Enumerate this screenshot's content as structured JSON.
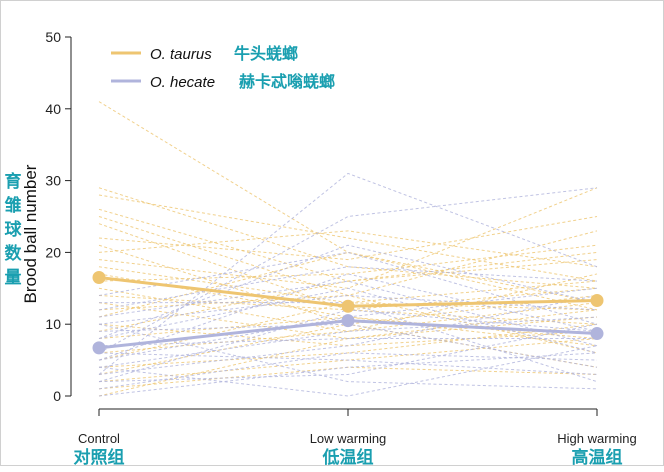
{
  "chart_data": {
    "type": "line",
    "ylabel": "Brood ball number",
    "ylabel_cn": [
      "育",
      "雏",
      "球",
      "数",
      "量"
    ],
    "ylim": [
      0,
      50
    ],
    "yticks": [
      0,
      10,
      20,
      30,
      40,
      50
    ],
    "categories": [
      "Control",
      "Low warming",
      "High warming"
    ],
    "categories_cn": [
      "对照组",
      "低温组",
      "高温组"
    ],
    "legend_position": "top-left",
    "series": [
      {
        "name": "O. taurus",
        "name_cn": "牛头蜣螂",
        "color": "#eec571",
        "values": [
          16.5,
          12.5,
          13.3
        ],
        "individuals": [
          [
            41,
            20,
            12
          ],
          [
            29,
            18,
            15
          ],
          [
            28,
            22,
            16
          ],
          [
            26,
            16,
            20
          ],
          [
            25,
            14,
            23
          ],
          [
            24,
            12,
            10
          ],
          [
            22,
            19,
            25
          ],
          [
            21,
            10,
            14
          ],
          [
            20,
            23,
            18
          ],
          [
            19,
            15,
            29
          ],
          [
            18,
            13,
            12
          ],
          [
            17,
            11,
            8
          ],
          [
            16,
            17,
            21
          ],
          [
            15,
            9,
            17
          ],
          [
            14,
            12,
            15
          ],
          [
            13,
            8,
            11
          ],
          [
            12,
            14,
            6
          ],
          [
            11,
            20,
            13
          ],
          [
            10,
            7,
            9
          ],
          [
            9,
            16,
            19
          ],
          [
            8,
            11,
            7
          ],
          [
            6,
            9,
            13
          ],
          [
            5,
            13,
            16
          ],
          [
            4,
            6,
            10
          ],
          [
            3,
            10,
            4
          ],
          [
            2,
            5,
            8
          ],
          [
            0,
            8,
            12
          ],
          [
            1,
            4,
            3
          ]
        ]
      },
      {
        "name": "O. hecate",
        "name_cn": "赫卡忒嗡蜣螂",
        "color": "#b0b4dc",
        "values": [
          6.7,
          10.5,
          8.7
        ],
        "individuals": [
          [
            3,
            31,
            18
          ],
          [
            6,
            25,
            29
          ],
          [
            14,
            20,
            10
          ],
          [
            12,
            18,
            16
          ],
          [
            8,
            15,
            6
          ],
          [
            10,
            14,
            12
          ],
          [
            2,
            12,
            9
          ],
          [
            5,
            11,
            15
          ],
          [
            9,
            10,
            4
          ],
          [
            4,
            9,
            11
          ],
          [
            7,
            8,
            8
          ],
          [
            1,
            6,
            5
          ],
          [
            11,
            16,
            7
          ],
          [
            3,
            7,
            14
          ],
          [
            6,
            5,
            3
          ],
          [
            13,
            13,
            2
          ],
          [
            2,
            3,
            10
          ],
          [
            8,
            21,
            13
          ],
          [
            5,
            17,
            9
          ],
          [
            0,
            4,
            6
          ],
          [
            10,
            2,
            1
          ],
          [
            4,
            0,
            7
          ]
        ]
      }
    ]
  }
}
